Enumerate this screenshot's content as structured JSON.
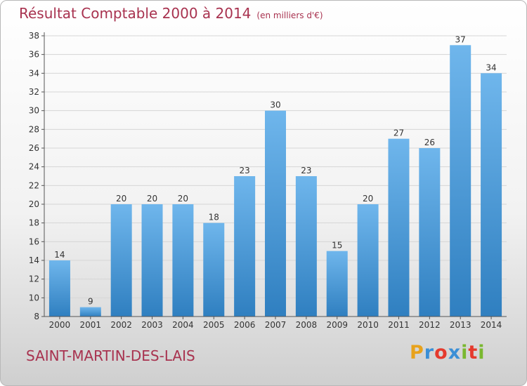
{
  "header": {
    "title": "Résultat Comptable 2000 à 2014",
    "subtitle": "(en milliers d'€)"
  },
  "footer": {
    "place": "SAINT-MARTIN-DES-LAIS",
    "logo_letters": [
      "P",
      "r",
      "o",
      "x",
      "i",
      "t",
      "i"
    ],
    "logo_colors": [
      "#e8a21c",
      "#3b8fd6",
      "#e53a2d",
      "#3b8fd6",
      "#7ab830",
      "#e53a2d",
      "#7ab830"
    ]
  },
  "colors": {
    "title": "#a8324f",
    "bar_light": "#6fb6ec",
    "bar_dark": "#2f7fc0"
  },
  "chart_data": {
    "type": "bar",
    "categories": [
      "2000",
      "2001",
      "2002",
      "2003",
      "2004",
      "2005",
      "2006",
      "2007",
      "2008",
      "2009",
      "2010",
      "2011",
      "2012",
      "2013",
      "2014"
    ],
    "values": [
      14,
      9,
      20,
      20,
      20,
      18,
      23,
      30,
      23,
      15,
      20,
      27,
      26,
      37,
      34
    ],
    "ylim": [
      8,
      38
    ],
    "yticks": [
      8,
      10,
      12,
      14,
      16,
      18,
      20,
      22,
      24,
      26,
      28,
      30,
      32,
      34,
      36,
      38
    ],
    "grid": true
  }
}
